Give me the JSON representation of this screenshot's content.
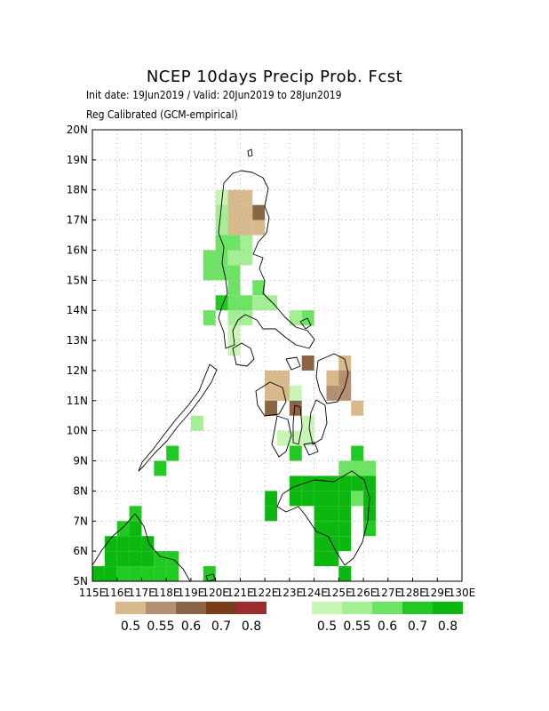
{
  "title": "NCEP 10days Precip Prob. Fcst",
  "subtitle_1": "Init date: 19Jun2019 / Valid: 20Jun2019 to 28Jun2019",
  "subtitle_2": "Reg Calibrated (GCM-empirical)",
  "axes": {
    "lon_range": [
      115,
      130
    ],
    "lat_range": [
      5,
      20
    ],
    "lat_ticks": [
      "5N",
      "6N",
      "7N",
      "8N",
      "9N",
      "10N",
      "11N",
      "12N",
      "13N",
      "14N",
      "15N",
      "16N",
      "17N",
      "18N",
      "19N",
      "20N"
    ],
    "lon_ticks": [
      "115E",
      "116E",
      "117E",
      "118E",
      "119E",
      "120E",
      "121E",
      "122E",
      "123E",
      "124E",
      "125E",
      "126E",
      "127E",
      "128E",
      "129E",
      "130E"
    ],
    "grid": "dotted"
  },
  "legend": {
    "dry": {
      "colors": [
        "#d8b98b",
        "#b48f72",
        "#8b6446",
        "#7a3c16",
        "#9e2b2e"
      ],
      "labels": [
        "0.5",
        "0.55",
        "0.6",
        "0.7",
        "0.8"
      ]
    },
    "wet": {
      "colors": [
        "#c8f5b4",
        "#a4ef93",
        "#6de364",
        "#22c923",
        "#0cb70f"
      ],
      "labels": [
        "0.5",
        "0.55",
        "0.6",
        "0.7",
        "0.8"
      ]
    }
  },
  "chart_data": {
    "type": "heatmap",
    "grid_step_deg": 0.5,
    "categories": [
      "dry 0.5",
      "dry 0.55",
      "dry 0.6",
      "dry 0.7",
      "dry 0.8",
      "wet 0.5",
      "wet 0.55",
      "wet 0.6",
      "wet 0.7",
      "wet 0.8"
    ],
    "cells": [
      {
        "lon": 120.5,
        "lat": 17.5,
        "cat": 0
      },
      {
        "lon": 121.0,
        "lat": 17.5,
        "cat": 0
      },
      {
        "lon": 120.5,
        "lat": 17.0,
        "cat": 0
      },
      {
        "lon": 121.0,
        "lat": 17.0,
        "cat": 0
      },
      {
        "lon": 120.5,
        "lat": 16.5,
        "cat": 0
      },
      {
        "lon": 121.0,
        "lat": 16.5,
        "cat": 0
      },
      {
        "lon": 121.5,
        "lat": 16.5,
        "cat": 0
      },
      {
        "lon": 121.5,
        "lat": 17.0,
        "cat": 2
      },
      {
        "lon": 120.0,
        "lat": 17.5,
        "cat": 5
      },
      {
        "lon": 120.0,
        "lat": 17.0,
        "cat": 6
      },
      {
        "lon": 120.0,
        "lat": 16.5,
        "cat": 6
      },
      {
        "lon": 120.5,
        "lat": 16.0,
        "cat": 7
      },
      {
        "lon": 121.0,
        "lat": 16.0,
        "cat": 6
      },
      {
        "lon": 120.0,
        "lat": 16.0,
        "cat": 7
      },
      {
        "lon": 119.5,
        "lat": 15.5,
        "cat": 7
      },
      {
        "lon": 120.0,
        "lat": 15.5,
        "cat": 7
      },
      {
        "lon": 120.5,
        "lat": 15.5,
        "cat": 6
      },
      {
        "lon": 121.0,
        "lat": 15.5,
        "cat": 6
      },
      {
        "lon": 119.5,
        "lat": 15.0,
        "cat": 7
      },
      {
        "lon": 120.0,
        "lat": 15.0,
        "cat": 7
      },
      {
        "lon": 120.5,
        "lat": 15.0,
        "cat": 7
      },
      {
        "lon": 120.5,
        "lat": 14.5,
        "cat": 7
      },
      {
        "lon": 121.5,
        "lat": 14.5,
        "cat": 7
      },
      {
        "lon": 120.0,
        "lat": 14.0,
        "cat": 8
      },
      {
        "lon": 120.5,
        "lat": 14.0,
        "cat": 7
      },
      {
        "lon": 121.0,
        "lat": 14.0,
        "cat": 7
      },
      {
        "lon": 121.5,
        "lat": 14.0,
        "cat": 6
      },
      {
        "lon": 122.0,
        "lat": 14.0,
        "cat": 6
      },
      {
        "lon": 119.5,
        "lat": 13.5,
        "cat": 7
      },
      {
        "lon": 120.5,
        "lat": 13.5,
        "cat": 6
      },
      {
        "lon": 121.0,
        "lat": 13.5,
        "cat": 6
      },
      {
        "lon": 123.5,
        "lat": 13.5,
        "cat": 7
      },
      {
        "lon": 120.5,
        "lat": 13.0,
        "cat": 5
      },
      {
        "lon": 120.5,
        "lat": 12.5,
        "cat": 5
      },
      {
        "lon": 123.0,
        "lat": 13.5,
        "cat": 6
      },
      {
        "lon": 122.0,
        "lat": 11.5,
        "cat": 0
      },
      {
        "lon": 122.5,
        "lat": 11.5,
        "cat": 0
      },
      {
        "lon": 122.0,
        "lat": 11.0,
        "cat": 0
      },
      {
        "lon": 122.5,
        "lat": 11.0,
        "cat": 0
      },
      {
        "lon": 122.0,
        "lat": 10.5,
        "cat": 2
      },
      {
        "lon": 123.0,
        "lat": 11.0,
        "cat": 5
      },
      {
        "lon": 123.5,
        "lat": 12.0,
        "cat": 2
      },
      {
        "lon": 125.0,
        "lat": 12.0,
        "cat": 0
      },
      {
        "lon": 124.5,
        "lat": 11.5,
        "cat": 0
      },
      {
        "lon": 125.0,
        "lat": 11.5,
        "cat": 1
      },
      {
        "lon": 124.5,
        "lat": 11.0,
        "cat": 1
      },
      {
        "lon": 125.0,
        "lat": 11.0,
        "cat": 1
      },
      {
        "lon": 125.5,
        "lat": 10.5,
        "cat": 0
      },
      {
        "lon": 123.0,
        "lat": 10.5,
        "cat": 2
      },
      {
        "lon": 123.5,
        "lat": 10.0,
        "cat": 5
      },
      {
        "lon": 123.0,
        "lat": 9.5,
        "cat": 5
      },
      {
        "lon": 122.5,
        "lat": 9.5,
        "cat": 5
      },
      {
        "lon": 123.5,
        "lat": 9.5,
        "cat": 5
      },
      {
        "lon": 119.0,
        "lat": 10.0,
        "cat": 6
      },
      {
        "lon": 123.0,
        "lat": 9.0,
        "cat": 8
      },
      {
        "lon": 118.0,
        "lat": 9.0,
        "cat": 8
      },
      {
        "lon": 117.5,
        "lat": 8.5,
        "cat": 8
      },
      {
        "lon": 125.5,
        "lat": 9.0,
        "cat": 8
      },
      {
        "lon": 125.0,
        "lat": 8.5,
        "cat": 7
      },
      {
        "lon": 125.5,
        "lat": 8.5,
        "cat": 7
      },
      {
        "lon": 126.0,
        "lat": 8.5,
        "cat": 7
      },
      {
        "lon": 123.0,
        "lat": 8.0,
        "cat": 9
      },
      {
        "lon": 123.5,
        "lat": 8.0,
        "cat": 9
      },
      {
        "lon": 124.0,
        "lat": 8.0,
        "cat": 9
      },
      {
        "lon": 124.5,
        "lat": 8.0,
        "cat": 9
      },
      {
        "lon": 125.0,
        "lat": 8.0,
        "cat": 9
      },
      {
        "lon": 125.5,
        "lat": 8.0,
        "cat": 9
      },
      {
        "lon": 126.0,
        "lat": 8.0,
        "cat": 9
      },
      {
        "lon": 123.0,
        "lat": 7.5,
        "cat": 9
      },
      {
        "lon": 123.5,
        "lat": 7.5,
        "cat": 9
      },
      {
        "lon": 124.0,
        "lat": 7.5,
        "cat": 9
      },
      {
        "lon": 124.5,
        "lat": 7.5,
        "cat": 9
      },
      {
        "lon": 125.0,
        "lat": 7.5,
        "cat": 9
      },
      {
        "lon": 125.5,
        "lat": 7.5,
        "cat": 7
      },
      {
        "lon": 126.0,
        "lat": 7.5,
        "cat": 9
      },
      {
        "lon": 122.0,
        "lat": 7.5,
        "cat": 9
      },
      {
        "lon": 122.0,
        "lat": 7.0,
        "cat": 9
      },
      {
        "lon": 124.0,
        "lat": 7.0,
        "cat": 9
      },
      {
        "lon": 124.5,
        "lat": 7.0,
        "cat": 9
      },
      {
        "lon": 125.0,
        "lat": 7.0,
        "cat": 9
      },
      {
        "lon": 126.0,
        "lat": 7.0,
        "cat": 9
      },
      {
        "lon": 124.0,
        "lat": 6.5,
        "cat": 9
      },
      {
        "lon": 124.5,
        "lat": 6.5,
        "cat": 9
      },
      {
        "lon": 125.0,
        "lat": 6.5,
        "cat": 9
      },
      {
        "lon": 126.0,
        "lat": 6.5,
        "cat": 8
      },
      {
        "lon": 124.0,
        "lat": 6.0,
        "cat": 9
      },
      {
        "lon": 124.5,
        "lat": 6.0,
        "cat": 9
      },
      {
        "lon": 125.0,
        "lat": 6.0,
        "cat": 9
      },
      {
        "lon": 124.0,
        "lat": 5.5,
        "cat": 9
      },
      {
        "lon": 124.5,
        "lat": 5.5,
        "cat": 9
      },
      {
        "lon": 125.0,
        "lat": 5.0,
        "cat": 9
      },
      {
        "lon": 116.5,
        "lat": 7.0,
        "cat": 8
      },
      {
        "lon": 116.0,
        "lat": 6.5,
        "cat": 8
      },
      {
        "lon": 116.5,
        "lat": 6.5,
        "cat": 9
      },
      {
        "lon": 115.5,
        "lat": 6.0,
        "cat": 9
      },
      {
        "lon": 116.0,
        "lat": 6.0,
        "cat": 9
      },
      {
        "lon": 116.5,
        "lat": 6.0,
        "cat": 9
      },
      {
        "lon": 117.0,
        "lat": 6.0,
        "cat": 9
      },
      {
        "lon": 115.5,
        "lat": 5.5,
        "cat": 9
      },
      {
        "lon": 116.0,
        "lat": 5.5,
        "cat": 9
      },
      {
        "lon": 116.5,
        "lat": 5.5,
        "cat": 9
      },
      {
        "lon": 117.0,
        "lat": 5.5,
        "cat": 9
      },
      {
        "lon": 117.5,
        "lat": 5.5,
        "cat": 8
      },
      {
        "lon": 118.0,
        "lat": 5.5,
        "cat": 8
      },
      {
        "lon": 115.0,
        "lat": 5.0,
        "cat": 9
      },
      {
        "lon": 115.5,
        "lat": 5.0,
        "cat": 9
      },
      {
        "lon": 116.0,
        "lat": 5.0,
        "cat": 8
      },
      {
        "lon": 116.5,
        "lat": 5.0,
        "cat": 8
      },
      {
        "lon": 117.0,
        "lat": 5.0,
        "cat": 8
      },
      {
        "lon": 117.5,
        "lat": 5.0,
        "cat": 8
      },
      {
        "lon": 118.0,
        "lat": 5.0,
        "cat": 8
      },
      {
        "lon": 119.5,
        "lat": 5.0,
        "cat": 8
      }
    ]
  }
}
